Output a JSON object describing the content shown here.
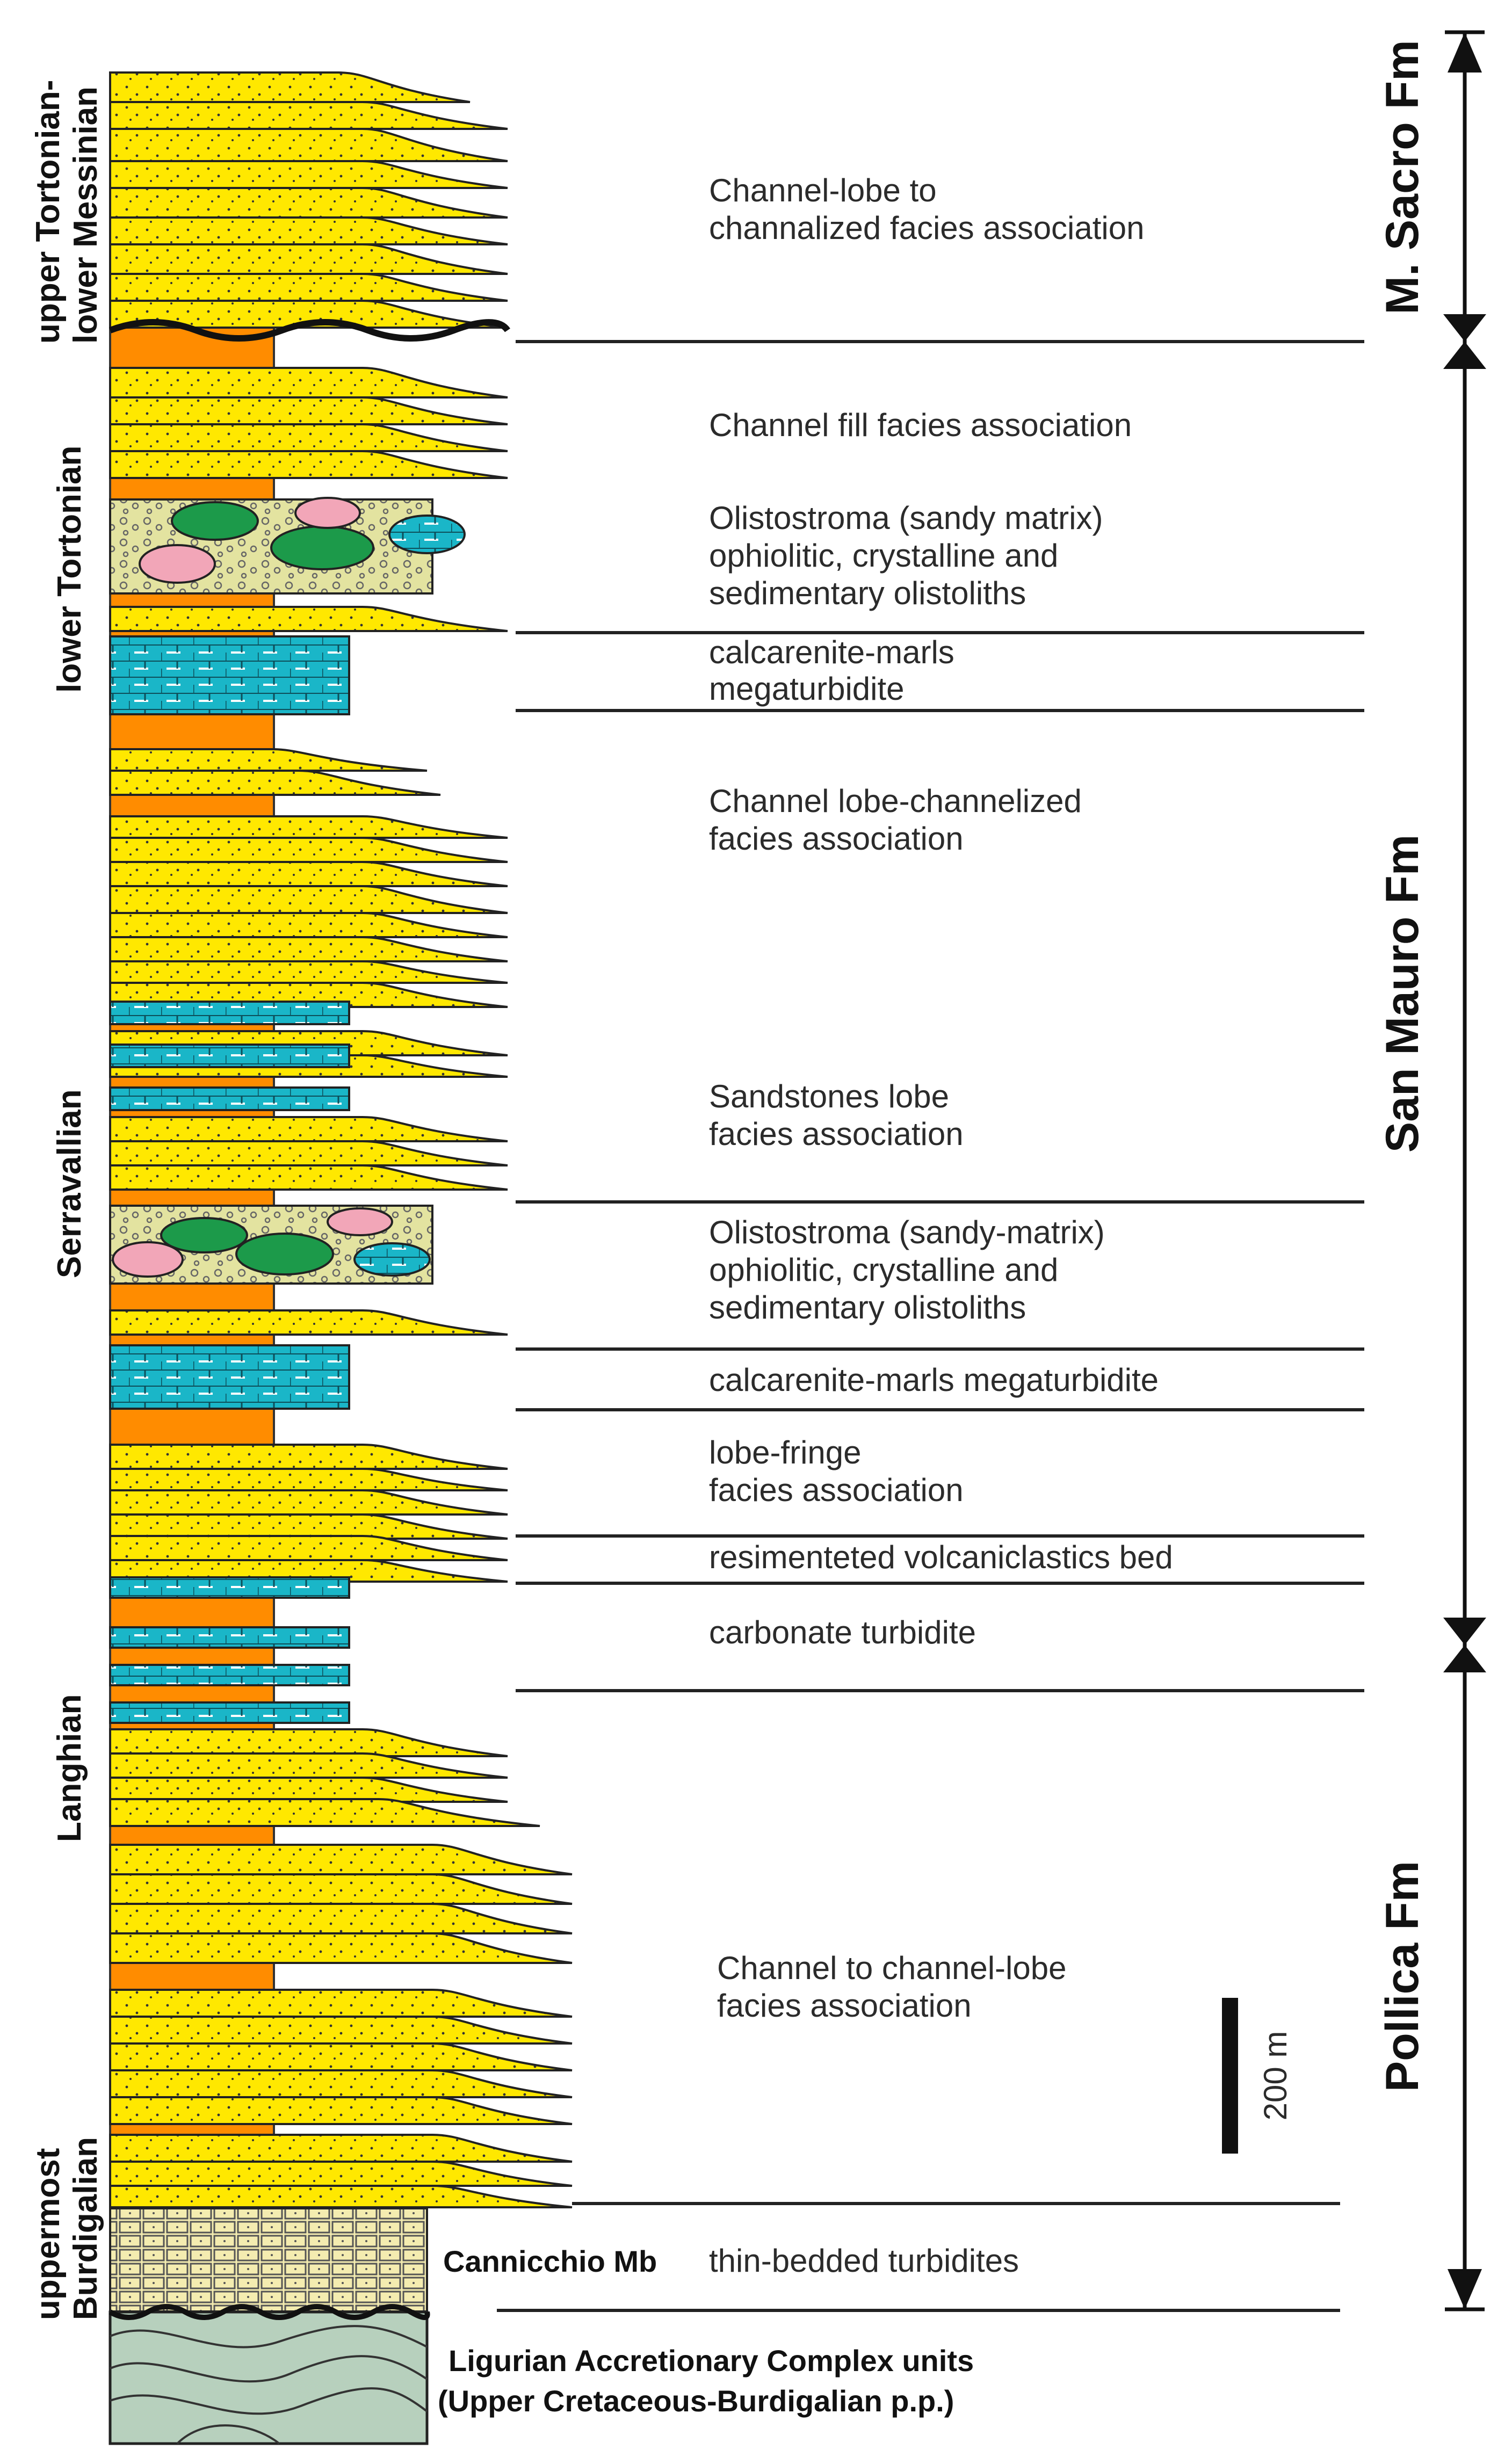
{
  "stages": {
    "upper_tortonian_1": "upper Tortonian-",
    "upper_tortonian_2": "lower Messinian",
    "lower_tortonian": "lower Tortonian",
    "serravallian": "Serravallian",
    "langhian": "Langhian",
    "burdigalian_1": "uppermost",
    "burdigalian_2": "Burdigalian"
  },
  "formations": {
    "m_sacro": "M. Sacro Fm",
    "san_mauro": "San Mauro Fm",
    "pollica": "Pollica Fm"
  },
  "facies": {
    "channel_lobe_to_channalized_1": "Channel-lobe to",
    "channel_lobe_to_channalized_2": "channalized facies association",
    "channel_fill": "Channel fill facies association",
    "olisto1_1": "Olistostroma (sandy matrix)",
    "olisto1_2": "ophiolitic, crystalline and",
    "olisto1_3": "sedimentary olistoliths",
    "calc1_1": "calcarenite-marls",
    "calc1_2": "megaturbidite",
    "channel_lobe_channelized_1": "Channel lobe-channelized",
    "channel_lobe_channelized_2": "facies association",
    "sandstones_lobe_1": "Sandstones lobe",
    "sandstones_lobe_2": "facies association",
    "olisto2_1": "Olistostroma (sandy-matrix)",
    "olisto2_2": "ophiolitic, crystalline and",
    "olisto2_3": "sedimentary olistoliths",
    "calc2": "calcarenite-marls megaturbidite",
    "lobe_fringe_1": "lobe-fringe",
    "lobe_fringe_2": "facies association",
    "volcaniclastics": "resimenteted volcaniclastics bed",
    "carbonate_turbidite": "carbonate turbidite",
    "channel_to_channel_lobe_1": "Channel to channel-lobe",
    "channel_to_channel_lobe_2": "facies association",
    "cannicchio_name": "Cannicchio Mb",
    "thin_bedded": "thin-bedded turbidites"
  },
  "basement": {
    "line1": "Ligurian Accretionary Complex units",
    "line2": "(Upper Cretaceous-Burdigalian p.p.)"
  },
  "scale": {
    "label": "200 m"
  },
  "colors": {
    "sand": "#ffe800",
    "orange": "#ff8c00",
    "calc": "#1ab6c8",
    "olisto_matrix": "#e3e3a0",
    "ophiolite": "#1c9a4a",
    "crystalline": "#f2a6b8",
    "cannicchio": "#f4ecb0",
    "basement": "#b7d0bd"
  }
}
